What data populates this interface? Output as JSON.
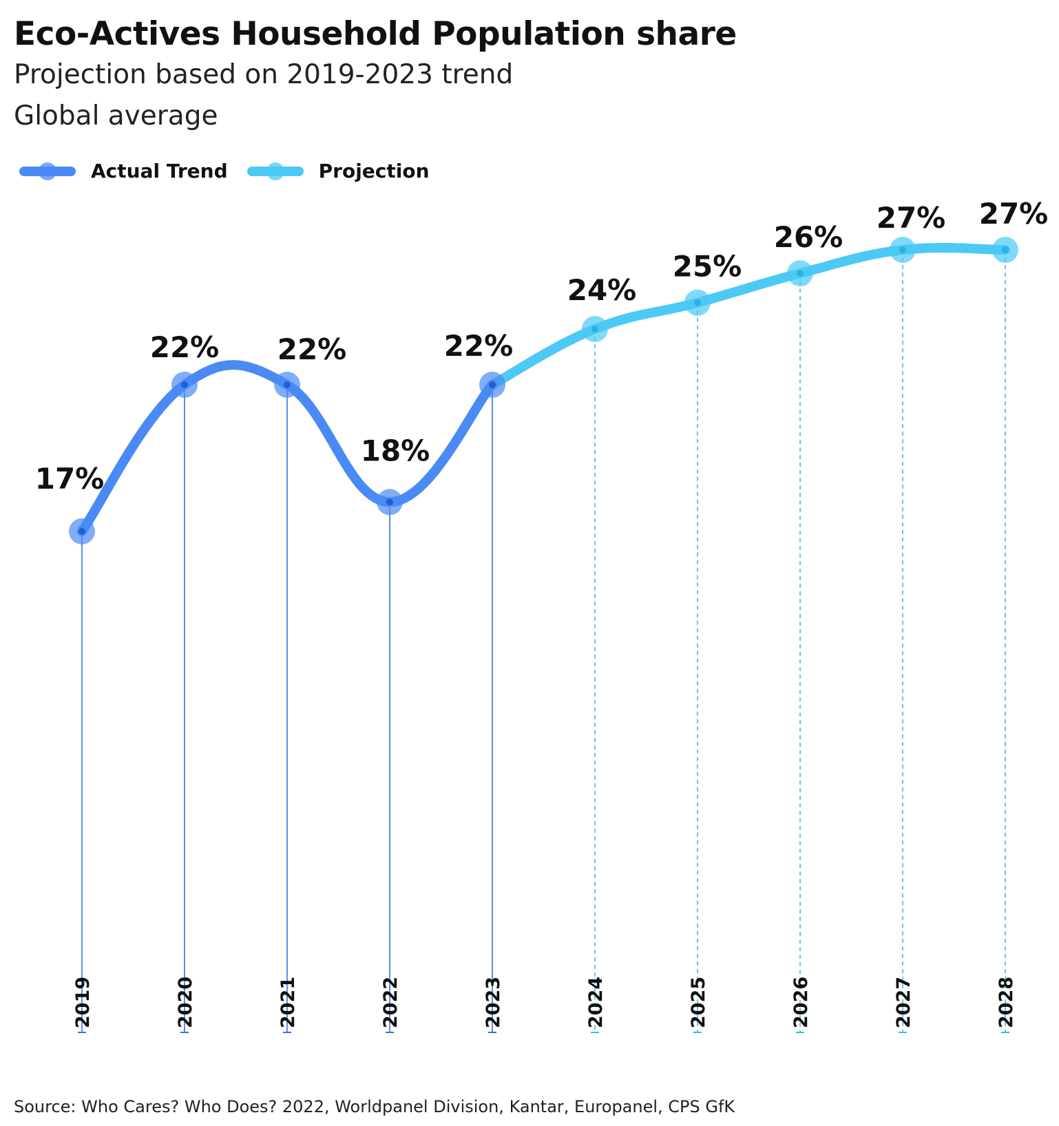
{
  "chart_data": {
    "type": "line",
    "title": "Eco-Actives Household Population share",
    "subtitle": "Projection based on 2019-2023 trend",
    "subtitle2": "Global average",
    "x": [
      "2019",
      "2020",
      "2021",
      "2022",
      "2023",
      "2024",
      "2025",
      "2026",
      "2027",
      "2028"
    ],
    "series": [
      {
        "name": "Actual Trend",
        "color": "#4A8AF4",
        "x": [
          "2019",
          "2020",
          "2021",
          "2022",
          "2023"
        ],
        "values": [
          17,
          22,
          22,
          18,
          22
        ],
        "labels": [
          "17%",
          "22%",
          "22%",
          "18%",
          "22%"
        ]
      },
      {
        "name": "Projection",
        "color": "#4CC9F5",
        "x": [
          "2023",
          "2024",
          "2025",
          "2026",
          "2027",
          "2028"
        ],
        "values": [
          22,
          23.9,
          24.8,
          25.8,
          26.6,
          26.6
        ],
        "labels": [
          "",
          "24%",
          "25%",
          "26%",
          "27%",
          "27%"
        ]
      }
    ],
    "ylim": [
      0,
      30
    ],
    "grid": false,
    "legend": "top-left"
  },
  "source": "Source: Who Cares? Who Does? 2022, Worldpanel Division, Kantar, Europanel, CPS GfK"
}
